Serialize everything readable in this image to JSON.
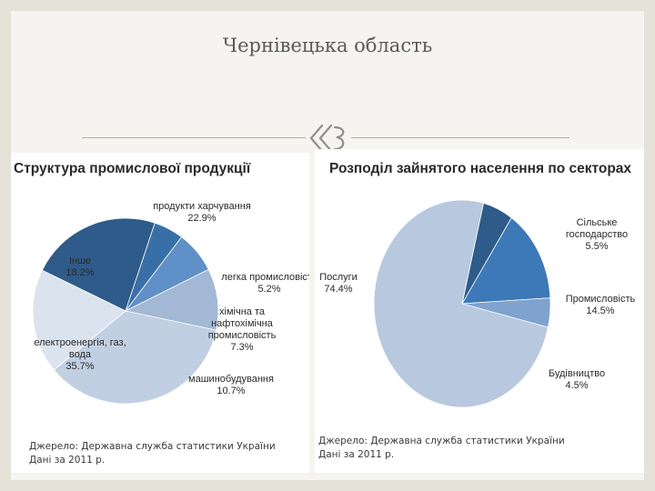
{
  "slide_title": "Чернівецька область",
  "accent_color": "#bfae84",
  "ornament_icon": "double-scroll-ornament",
  "chart_data": [
    {
      "type": "pie",
      "title": "Структура промислової продукції",
      "unit": "%",
      "slices": [
        {
          "label_lines": [
            "продукти харчування"
          ],
          "value": 22.9,
          "value_text": "22.9%",
          "color": "#2e5b89"
        },
        {
          "label_lines": [
            "легка промисловість"
          ],
          "value": 5.2,
          "value_text": "5.2%",
          "color": "#386fa6"
        },
        {
          "label_lines": [
            "хімічна та",
            "нафтохімічна",
            "промисловість"
          ],
          "value": 7.3,
          "value_text": "7.3%",
          "color": "#5f90c7"
        },
        {
          "label_lines": [
            "машинобудування"
          ],
          "value": 10.7,
          "value_text": "10.7%",
          "color": "#a3b8d5"
        },
        {
          "label_lines": [
            "електроенергія, газ,",
            "вода"
          ],
          "value": 35.7,
          "value_text": "35.7%",
          "color": "#c1cfe2"
        },
        {
          "label_lines": [
            "Інше"
          ],
          "value": 18.2,
          "value_text": "18.2%",
          "color": "#dbe3ef"
        }
      ],
      "source_lines": [
        "Джерело: Державна служба статистики України",
        "Дані за 2011 р."
      ]
    },
    {
      "type": "pie",
      "title": "Розподіл зайнятого населення по секторах",
      "unit": "%",
      "slices": [
        {
          "label_lines": [
            "Сільське",
            "господарство"
          ],
          "value": 5.5,
          "value_text": "5.5%",
          "color": "#2e5b89"
        },
        {
          "label_lines": [
            "Промисловість"
          ],
          "value": 14.5,
          "value_text": "14.5%",
          "color": "#3d78b8"
        },
        {
          "label_lines": [
            "Будівництво"
          ],
          "value": 4.5,
          "value_text": "4.5%",
          "color": "#7fa2ce"
        },
        {
          "label_lines": [
            "Послуги"
          ],
          "value": 74.4,
          "value_text": "74.4%",
          "color": "#b8c8df"
        }
      ],
      "source_lines": [
        "Джерело: Державна служба статистики України",
        "Дані за 2011 р."
      ]
    }
  ]
}
